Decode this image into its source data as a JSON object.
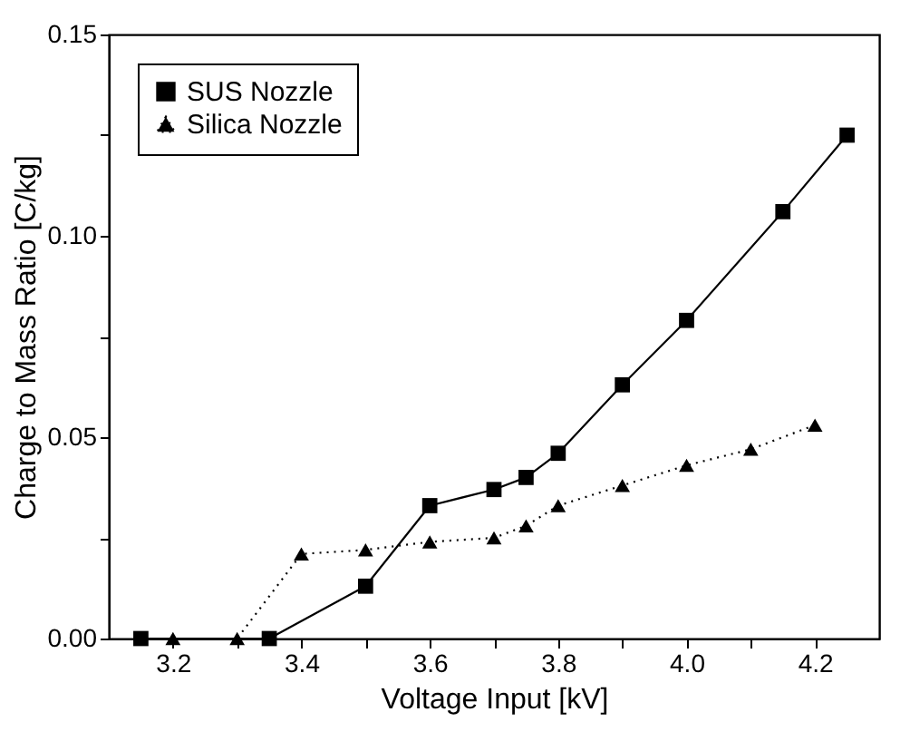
{
  "chart_data": {
    "type": "line",
    "xlabel": "Voltage Input [kV]",
    "ylabel": "Charge to Mass Ratio [C/kg]",
    "xlim": [
      3.1,
      4.3
    ],
    "xticks": [
      3.2,
      {
        "value": 3.3,
        "label": null
      },
      3.4,
      {
        "value": 3.5,
        "label": null
      },
      3.6,
      {
        "value": 3.7,
        "label": null
      },
      3.8,
      {
        "value": 3.9,
        "label": null
      },
      {
        "value": 4.0,
        "label": "4.0"
      },
      {
        "value": 4.1,
        "label": null
      },
      4.2
    ],
    "ylim": [
      0,
      0.15
    ],
    "yticks": [
      {
        "value": 0,
        "label": "0.00"
      },
      {
        "value": 0.025,
        "label": null
      },
      {
        "value": 0.05,
        "label": "0.05"
      },
      {
        "value": 0.075,
        "label": null
      },
      {
        "value": 0.1,
        "label": "0.10"
      },
      {
        "value": 0.125,
        "label": null
      },
      {
        "value": 0.15,
        "label": "0.15"
      }
    ],
    "grid": false,
    "legend": "top left",
    "series": [
      {
        "name": "SUS Nozzle",
        "color": "#000000",
        "marker": "square",
        "line_style": "solid",
        "x": [
          3.15,
          3.35,
          3.5,
          3.6,
          3.7,
          3.75,
          3.8,
          3.9,
          4.0,
          4.15,
          4.25
        ],
        "values": [
          0,
          0,
          0.013,
          0.033,
          0.037,
          0.04,
          0.046,
          0.063,
          0.079,
          0.106,
          0.125
        ]
      },
      {
        "name": "Silica Nozzle",
        "color": "#000000",
        "marker": "triangle",
        "line_style": "dotted",
        "x": [
          3.2,
          3.3,
          3.4,
          3.5,
          3.6,
          3.7,
          3.75,
          3.8,
          3.9,
          4.0,
          4.1,
          4.2
        ],
        "values": [
          0,
          0,
          0.021,
          0.022,
          0.024,
          0.025,
          0.028,
          0.033,
          0.038,
          0.043,
          0.047,
          0.053
        ]
      }
    ]
  }
}
